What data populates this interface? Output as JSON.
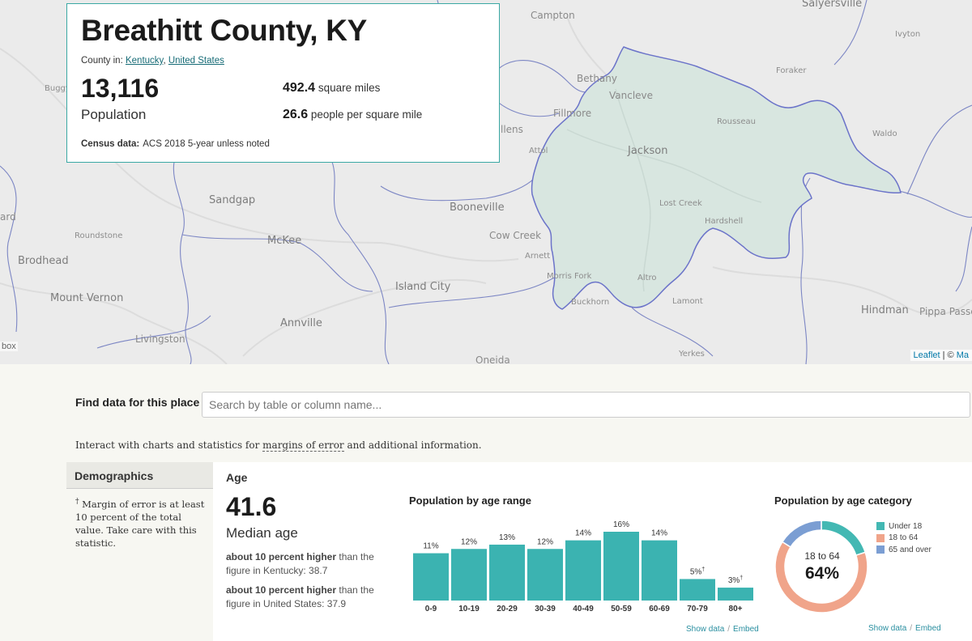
{
  "map": {
    "labels": [
      {
        "text": "Salyersville",
        "cls": "lg"
      },
      {
        "text": "Campton",
        "cls": ""
      },
      {
        "text": "Ivyton",
        "cls": "sm"
      },
      {
        "text": "Buggy",
        "cls": "sm"
      },
      {
        "text": "Bethany",
        "cls": ""
      },
      {
        "text": "Vancleve",
        "cls": ""
      },
      {
        "text": "Foraker",
        "cls": "sm"
      },
      {
        "text": "Fillmore",
        "cls": ""
      },
      {
        "text": "llens",
        "cls": ""
      },
      {
        "text": "Rousseau",
        "cls": "sm"
      },
      {
        "text": "Waldo",
        "cls": "sm"
      },
      {
        "text": "Attol",
        "cls": "sm"
      },
      {
        "text": "Jackson",
        "cls": "lg"
      },
      {
        "text": "Sandgap",
        "cls": "lg"
      },
      {
        "text": "Booneville",
        "cls": "lg"
      },
      {
        "text": "Lost Creek",
        "cls": "sm"
      },
      {
        "text": "ard",
        "cls": ""
      },
      {
        "text": "Hardshell",
        "cls": "sm"
      },
      {
        "text": "Roundstone",
        "cls": "sm"
      },
      {
        "text": "McKee",
        "cls": "lg"
      },
      {
        "text": "Cow Creek",
        "cls": ""
      },
      {
        "text": "Brodhead",
        "cls": "lg"
      },
      {
        "text": "Arnett",
        "cls": "sm"
      },
      {
        "text": "Morris Fork",
        "cls": "sm"
      },
      {
        "text": "Altro",
        "cls": "sm"
      },
      {
        "text": "Island City",
        "cls": "lg"
      },
      {
        "text": "Mount Vernon",
        "cls": "lg"
      },
      {
        "text": "Buckhorn",
        "cls": "sm"
      },
      {
        "text": "Lamont",
        "cls": "sm"
      },
      {
        "text": "Hindman",
        "cls": "lg"
      },
      {
        "text": "Pippa Passes",
        "cls": ""
      },
      {
        "text": "Annville",
        "cls": "lg"
      },
      {
        "text": "Livingston",
        "cls": ""
      },
      {
        "text": "Yerkes",
        "cls": "sm"
      },
      {
        "text": "Oneida",
        "cls": ""
      }
    ],
    "attribution_leaflet": "Leaflet",
    "attribution_sep": " | © ",
    "attribution_rest": "Ma",
    "edge_text": "box"
  },
  "card": {
    "title": "Breathitt County, KY",
    "county_in_prefix": "County in: ",
    "state_link": "Kentucky",
    "comma": ", ",
    "country_link": "United States",
    "population": "13,116",
    "population_label": "Population",
    "area_value": "492.4",
    "area_label": "square miles",
    "density_value": "26.6",
    "density_label": "people per square mile",
    "census_label": "Census data:",
    "census_value": "ACS 2018 5-year unless noted"
  },
  "find": {
    "label": "Find data for this place",
    "placeholder": "Search by table or column name..."
  },
  "interact": {
    "prefix": "Interact with charts and statistics for ",
    "link": "margins of error",
    "suffix": " and additional information."
  },
  "sidebar": {
    "heading": "Demographics",
    "dagger": "†",
    "note": " Margin of error is at least 10 percent of the total value. Take care with this statistic."
  },
  "age": {
    "title": "Age",
    "median": "41.6",
    "median_label": "Median age",
    "cmp1_bold": "about 10 percent higher",
    "cmp1_rest": " than the figure in Kentucky: 38.7",
    "cmp2_bold": "about 10 percent higher",
    "cmp2_rest": " than the figure in United States: 37.9"
  },
  "chart_data": [
    {
      "type": "bar",
      "title": "Population by age range",
      "categories": [
        "0-9",
        "10-19",
        "20-29",
        "30-39",
        "40-49",
        "50-59",
        "60-69",
        "70-79",
        "80+"
      ],
      "values": [
        11,
        12,
        13,
        12,
        14,
        16,
        14,
        5,
        3
      ],
      "value_labels": [
        "11%",
        "12%",
        "13%",
        "12%",
        "14%",
        "16%",
        "14%",
        "5%",
        "3%"
      ],
      "moe_flag": [
        false,
        false,
        false,
        false,
        false,
        false,
        false,
        true,
        true
      ],
      "color": "#3bb3b1"
    },
    {
      "type": "pie",
      "title": "Population by age category",
      "categories": [
        "Under 18",
        "18 to 64",
        "65 and over"
      ],
      "values": [
        20,
        64,
        16
      ],
      "colors": [
        "#43b8b3",
        "#f0a48a",
        "#7b9ed3"
      ],
      "center_label": "18 to 64",
      "center_value": "64%"
    }
  ],
  "links": {
    "show_data": "Show data",
    "sep": "/",
    "embed": "Embed"
  }
}
